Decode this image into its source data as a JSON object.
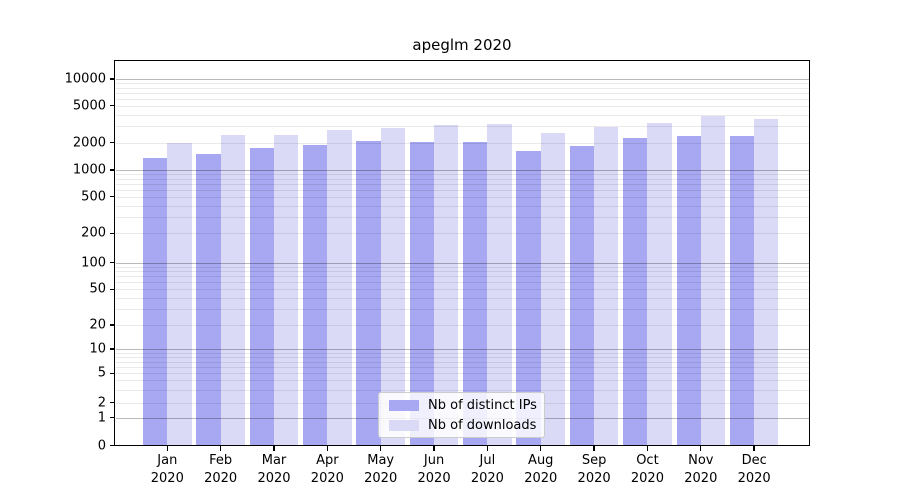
{
  "chart_data": {
    "type": "bar",
    "title": "apeglm 2020",
    "categories": [
      {
        "month": "Jan",
        "year": "2020"
      },
      {
        "month": "Feb",
        "year": "2020"
      },
      {
        "month": "Mar",
        "year": "2020"
      },
      {
        "month": "Apr",
        "year": "2020"
      },
      {
        "month": "May",
        "year": "2020"
      },
      {
        "month": "Jun",
        "year": "2020"
      },
      {
        "month": "Jul",
        "year": "2020"
      },
      {
        "month": "Aug",
        "year": "2020"
      },
      {
        "month": "Sep",
        "year": "2020"
      },
      {
        "month": "Oct",
        "year": "2020"
      },
      {
        "month": "Nov",
        "year": "2020"
      },
      {
        "month": "Dec",
        "year": "2020"
      }
    ],
    "series": [
      {
        "name": "Nb of distinct IPs",
        "color": "#a7a7f2",
        "values": [
          1350,
          1490,
          1740,
          1910,
          2080,
          2050,
          2050,
          1630,
          1845,
          2240,
          2360,
          2360
        ]
      },
      {
        "name": "Nb of downloads",
        "color": "#dadaf7",
        "values": [
          1960,
          2440,
          2450,
          2760,
          2880,
          3080,
          3160,
          2520,
          2940,
          3290,
          3870,
          3615
        ]
      }
    ],
    "y_axis": {
      "scale": "symlog",
      "tick_labels": [
        "0",
        "1",
        "2",
        "5",
        "10",
        "20",
        "50",
        "100",
        "200",
        "500",
        "1000",
        "2000",
        "5000",
        "10000"
      ]
    },
    "legend": {
      "position": "bottom-center"
    },
    "grid": "horizontal major and minor, drawn over bars",
    "xlabel": "",
    "ylabel": ""
  }
}
